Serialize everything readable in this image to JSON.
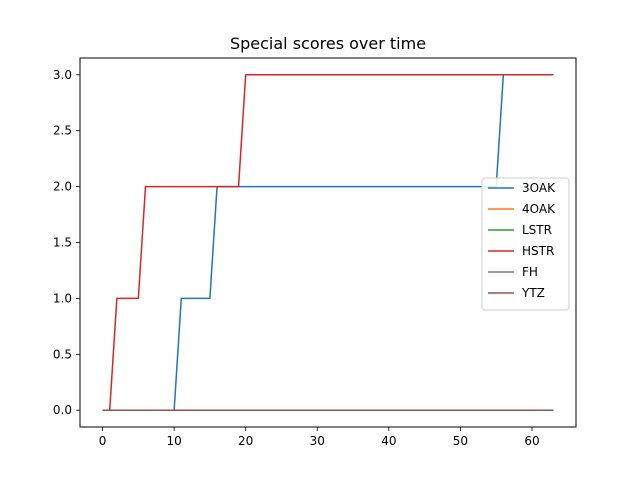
{
  "chart_data": {
    "type": "line",
    "title": "Special scores over time",
    "xlabel": "",
    "ylabel": "",
    "xlim": [
      -3.15,
      66.15
    ],
    "ylim": [
      -0.15,
      3.15
    ],
    "xticks": [
      0,
      10,
      20,
      30,
      40,
      50,
      60
    ],
    "yticks": [
      0.0,
      0.5,
      1.0,
      1.5,
      2.0,
      2.5,
      3.0
    ],
    "xtick_labels": [
      "0",
      "10",
      "20",
      "30",
      "40",
      "50",
      "60"
    ],
    "ytick_labels": [
      "0.0",
      "0.5",
      "1.0",
      "1.5",
      "2.0",
      "2.5",
      "3.0"
    ],
    "grid": false,
    "legend_position": "center-right",
    "series": [
      {
        "name": "3OAK",
        "color": "#1f77b4",
        "points": [
          [
            0,
            0
          ],
          [
            10,
            0
          ],
          [
            11,
            1
          ],
          [
            15,
            1
          ],
          [
            16,
            2
          ],
          [
            55,
            2
          ],
          [
            56,
            3
          ],
          [
            63,
            3
          ]
        ]
      },
      {
        "name": "4OAK",
        "color": "#ff7f0e",
        "points": [
          [
            0,
            0
          ],
          [
            63,
            0
          ]
        ]
      },
      {
        "name": "LSTR",
        "color": "#2ca02c",
        "points": [
          [
            0,
            0
          ],
          [
            63,
            0
          ]
        ]
      },
      {
        "name": "HSTR",
        "color": "#d62728",
        "points": [
          [
            0,
            0
          ],
          [
            1,
            0
          ],
          [
            2,
            1
          ],
          [
            5,
            1
          ],
          [
            6,
            2
          ],
          [
            19,
            2
          ],
          [
            20,
            3
          ],
          [
            63,
            3
          ]
        ]
      },
      {
        "name": "FH",
        "color": "#9467bd",
        "points": [
          [
            0,
            0
          ],
          [
            63,
            0
          ]
        ]
      },
      {
        "name": "YTZ",
        "color": "#8c564b",
        "points": [
          [
            0,
            0
          ],
          [
            63,
            0
          ]
        ]
      }
    ]
  }
}
